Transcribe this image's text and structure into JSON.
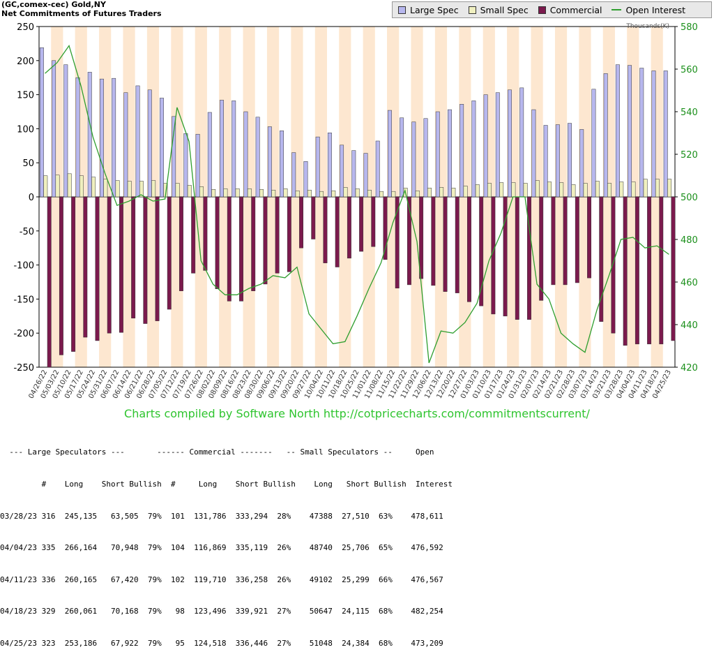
{
  "header": {
    "line1": "(GC,comex-cec) Gold,NY",
    "line2": "Net Commitments of Futures Traders"
  },
  "legend": {
    "large_spec": "Large Spec",
    "small_spec": "Small Spec",
    "commercial": "Commercial",
    "open_interest": "Open Interest"
  },
  "colors": {
    "large_spec": "#b7b7ee",
    "small_spec": "#f0f0c0",
    "commercial": "#7b1a4d",
    "open_interest": "#2e9e2e",
    "stripe": "#fde7d0"
  },
  "credit": "Charts compiled by Software North  http://cotpricecharts.com/commitmentscurrent/",
  "chart_data": {
    "type": "bar",
    "left_axis": {
      "min": -250,
      "max": 250,
      "ticks": [
        250,
        200,
        150,
        100,
        50,
        0,
        -50,
        -100,
        -150,
        -200,
        -250
      ]
    },
    "right_axis": {
      "min": 420,
      "max": 580,
      "ticks": [
        580,
        560,
        540,
        520,
        500,
        480,
        460,
        440,
        420
      ],
      "unit": "Thousands(K)"
    },
    "x_tick_labels": [
      "04/26/22",
      "05/03/22",
      "05/10/22",
      "05/17/22",
      "05/24/22",
      "05/31/22",
      "06/07/22",
      "06/14/22",
      "06/21/22",
      "06/28/22",
      "07/05/22",
      "07/12/22",
      "07/19/22",
      "07/26/22",
      "08/02/22",
      "08/09/22",
      "08/16/22",
      "08/23/22",
      "08/30/22",
      "09/06/22",
      "09/13/22",
      "09/20/22",
      "09/27/22",
      "10/04/22",
      "10/11/22",
      "10/18/22",
      "10/25/22",
      "11/01/22",
      "11/08/22",
      "11/15/22",
      "11/22/22",
      "11/29/22",
      "12/06/22",
      "12/13/22",
      "12/20/22",
      "12/27/22",
      "01/03/23",
      "01/10/23",
      "01/17/23",
      "01/24/23",
      "01/31/23",
      "02/07/23",
      "02/14/23",
      "02/21/23",
      "02/28/23",
      "03/07/23",
      "03/14/23",
      "03/21/23",
      "03/28/23",
      "04/04/23",
      "04/11/23",
      "04/18/23",
      "04/25/23"
    ],
    "series": [
      {
        "name": "Large Spec",
        "values": [
          219,
          200,
          194,
          175,
          183,
          173,
          174,
          153,
          163,
          157,
          145,
          118,
          93,
          92,
          124,
          142,
          141,
          125,
          117,
          103,
          97,
          65,
          52,
          88,
          94,
          76,
          68,
          64,
          82,
          127,
          116,
          110,
          115,
          125,
          128,
          136,
          141,
          150,
          153,
          157,
          160,
          128,
          105,
          106,
          108,
          99,
          158,
          181,
          194,
          193,
          189,
          185,
          185
        ]
      },
      {
        "name": "Small Spec",
        "values": [
          31,
          32,
          34,
          31,
          29,
          26,
          24,
          23,
          23,
          24,
          20,
          20,
          17,
          15,
          11,
          12,
          12,
          12,
          11,
          10,
          12,
          9,
          10,
          8,
          9,
          14,
          12,
          10,
          8,
          8,
          13,
          9,
          13,
          14,
          13,
          16,
          18,
          20,
          21,
          21,
          20,
          24,
          22,
          21,
          18,
          20,
          23,
          20,
          22,
          22,
          26,
          26,
          26
        ]
      },
      {
        "name": "Commercial",
        "values": [
          -250,
          -232,
          -227,
          -206,
          -211,
          -200,
          -199,
          -178,
          -186,
          -182,
          -165,
          -138,
          -112,
          -108,
          -135,
          -153,
          -153,
          -138,
          -128,
          -112,
          -110,
          -75,
          -62,
          -97,
          -103,
          -90,
          -80,
          -73,
          -92,
          -134,
          -129,
          -120,
          -130,
          -139,
          -141,
          -154,
          -160,
          -172,
          -175,
          -180,
          -180,
          -152,
          -129,
          -129,
          -126,
          -119,
          -183,
          -200,
          -218,
          -216,
          -216,
          -216,
          -211
        ]
      },
      {
        "name": "Open Interest",
        "values": [
          558,
          563,
          571,
          552,
          528,
          511,
          496,
          498,
          501,
          498,
          499,
          542,
          526,
          470,
          459,
          454,
          454,
          457,
          459,
          463,
          462,
          467,
          445,
          438,
          431,
          432,
          444,
          457,
          469,
          488,
          503,
          479,
          422,
          437,
          436,
          441,
          450,
          470,
          483,
          500,
          500,
          459,
          452,
          436,
          431,
          427,
          447,
          463,
          480,
          481,
          476,
          477,
          473
        ]
      }
    ]
  },
  "table": {
    "header1": "  --- Large Speculators ---       ------ Commercial -------   -- Small Speculators --     Open",
    "header2": "         #    Long    Short Bullish  #     Long    Short Bullish    Long   Short Bullish  Interest",
    "rows": [
      "03/28/23 316  245,135   63,505  79%  101  131,786  333,294  28%    47388  27,510  63%    478,611",
      "04/04/23 335  266,164   70,948  79%  104  116,869  335,119  26%    48740  25,706  65%    476,592",
      "04/11/23 336  260,165   67,420  79%  102  119,710  336,258  26%    49102  25,299  66%    476,567",
      "04/18/23 329  260,061   70,168  79%   98  123,496  339,921  27%    50647  24,115  68%    482,254",
      "04/25/23 323  253,186   67,922  79%   95  124,518  336,446  27%    51048  24,384  68%    473,209"
    ]
  }
}
